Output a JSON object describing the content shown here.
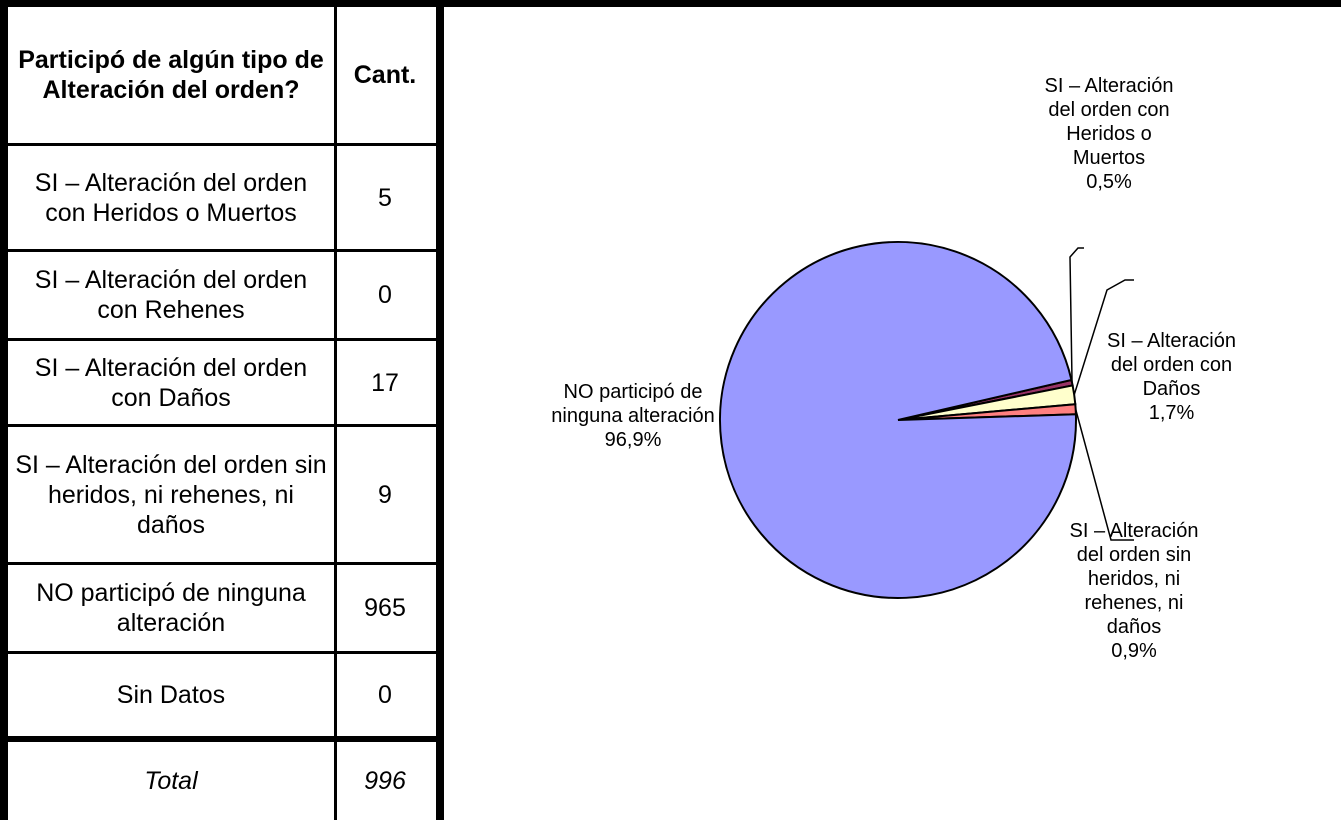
{
  "table": {
    "header": {
      "question": "Participó de algún tipo de Alteración del orden?",
      "count": "Cant."
    },
    "rows": [
      {
        "label": "SI – Alteración del orden con Heridos o Muertos",
        "count": "5"
      },
      {
        "label": "SI – Alteración del orden con Rehenes",
        "count": "0"
      },
      {
        "label": "SI – Alteración del orden con Daños",
        "count": "17"
      },
      {
        "label": "SI – Alteración del orden sin heridos, ni rehenes, ni daños",
        "count": "9"
      },
      {
        "label": "NO participó de ninguna alteración",
        "count": "965"
      },
      {
        "label": "Sin Datos",
        "count": "0"
      }
    ],
    "total": {
      "label": "Total",
      "count": "996"
    }
  },
  "chart_data": {
    "type": "pie",
    "title": "",
    "slices": [
      {
        "label": "SI – Alteración del orden con Heridos o Muertos",
        "value": 0.5,
        "value_label": "0,5%",
        "color": "#993366"
      },
      {
        "label": "SI – Alteración del orden con Daños",
        "value": 1.7,
        "value_label": "1,7%",
        "color": "#FFFFCC"
      },
      {
        "label": "SI – Alteración del orden sin heridos, ni rehenes, ni daños",
        "value": 0.9,
        "value_label": "0,9%",
        "color": "#FF8080"
      },
      {
        "label": "NO participó de ninguna alteración",
        "value": 96.9,
        "value_label": "96,9%",
        "color": "#9999FF"
      }
    ],
    "legend": "none"
  }
}
